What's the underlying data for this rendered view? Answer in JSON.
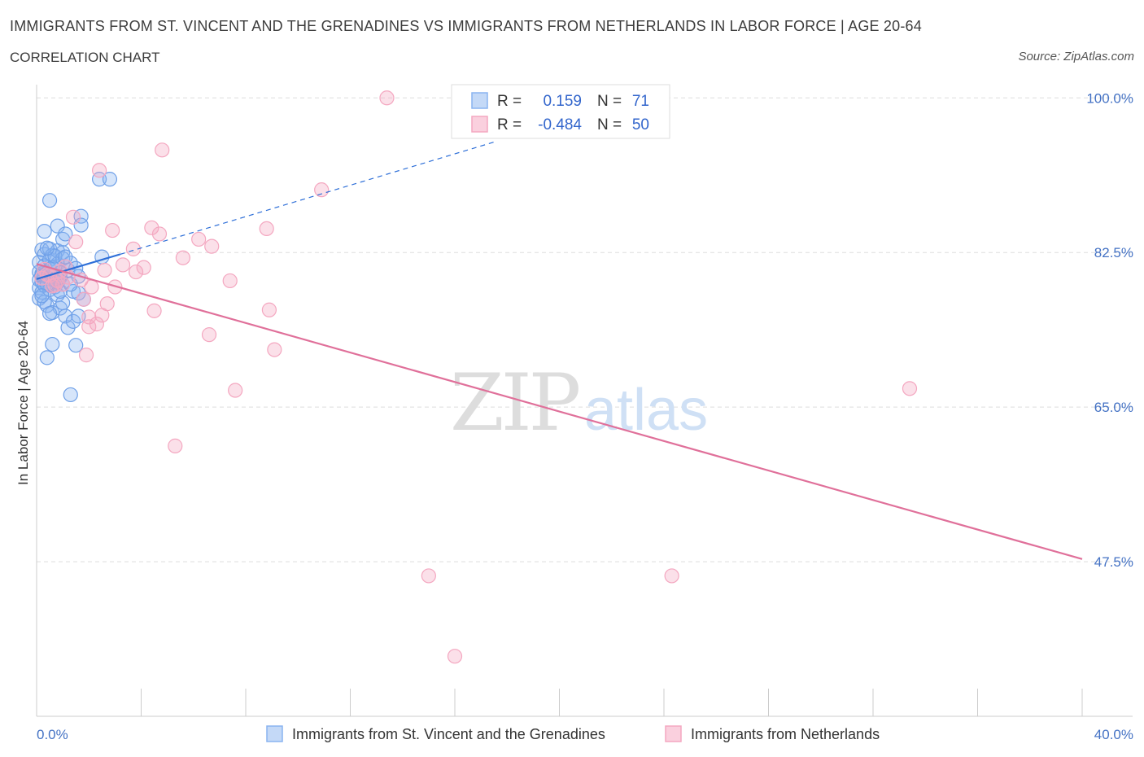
{
  "title": "IMMIGRANTS FROM ST. VINCENT AND THE GRENADINES VS IMMIGRANTS FROM NETHERLANDS IN LABOR FORCE | AGE 20-64",
  "subtitle": "CORRELATION CHART",
  "source": "Source: ZipAtlas.com",
  "watermark": {
    "zip": "ZIP",
    "atlas": "atlas"
  },
  "legend_top": {
    "r_label": "R =",
    "n_label": "N =",
    "rows": [
      {
        "r": "0.159",
        "n": "71",
        "color": "#8ab4f0"
      },
      {
        "r": "-0.484",
        "n": "50",
        "color": "#f4a7c0"
      }
    ]
  },
  "chart_data": {
    "type": "scatter",
    "title": "IMMIGRANTS FROM ST. VINCENT AND THE GRENADINES VS IMMIGRANTS FROM NETHERLANDS IN LABOR FORCE | AGE 20-64",
    "ylabel": "In Labor Force | Age 20-64",
    "xlabel": "",
    "xlim": [
      0,
      40
    ],
    "ylim": [
      30,
      101.5
    ],
    "x_tick_labels": [
      "0.0%",
      "40.0%"
    ],
    "y_tick_labels": [
      "100.0%",
      "82.5%",
      "65.0%",
      "47.5%"
    ],
    "y_ticks": [
      100,
      82.5,
      65,
      47.5
    ],
    "grid": true,
    "legend_position": "bottom",
    "series": [
      {
        "name": "Immigrants from St. Vincent and the Grenadines",
        "color": "#6fa0e8",
        "line_color": "#2e6fd8",
        "trend": {
          "x": [
            0.0,
            3.2
          ],
          "y": [
            79.5,
            82.3
          ],
          "dashed_to": [
            17.5,
            95.0
          ]
        },
        "points": [
          [
            0.1,
            80.3
          ],
          [
            0.1,
            79.4
          ],
          [
            0.1,
            78.5
          ],
          [
            0.1,
            81.4
          ],
          [
            0.1,
            77.3
          ],
          [
            0.2,
            82.8
          ],
          [
            0.2,
            80.1
          ],
          [
            0.2,
            79.2
          ],
          [
            0.2,
            78.0
          ],
          [
            0.3,
            84.9
          ],
          [
            0.3,
            82.3
          ],
          [
            0.3,
            81.0
          ],
          [
            0.3,
            79.9
          ],
          [
            0.3,
            78.8
          ],
          [
            0.4,
            76.5
          ],
          [
            0.4,
            70.6
          ],
          [
            0.5,
            88.4
          ],
          [
            0.5,
            82.9
          ],
          [
            0.5,
            81.7
          ],
          [
            0.5,
            80.6
          ],
          [
            0.5,
            79.5
          ],
          [
            0.5,
            78.3
          ],
          [
            0.6,
            75.7
          ],
          [
            0.6,
            72.1
          ],
          [
            0.6,
            82.2
          ],
          [
            0.7,
            80.9
          ],
          [
            0.7,
            79.3
          ],
          [
            0.7,
            78.6
          ],
          [
            0.8,
            85.5
          ],
          [
            0.8,
            82.7
          ],
          [
            0.8,
            81.2
          ],
          [
            0.8,
            79.1
          ],
          [
            0.8,
            77.7
          ],
          [
            0.9,
            76.2
          ],
          [
            0.9,
            80.2
          ],
          [
            0.9,
            79.7
          ],
          [
            1.0,
            84.0
          ],
          [
            1.0,
            82.5
          ],
          [
            1.0,
            81.8
          ],
          [
            1.0,
            78.9
          ],
          [
            1.0,
            76.8
          ],
          [
            1.1,
            75.3
          ],
          [
            1.1,
            84.6
          ],
          [
            1.2,
            80.5
          ],
          [
            1.2,
            74.0
          ],
          [
            1.3,
            81.3
          ],
          [
            1.3,
            66.4
          ],
          [
            1.4,
            78.1
          ],
          [
            1.4,
            74.7
          ],
          [
            1.5,
            72.0
          ],
          [
            1.5,
            80.7
          ],
          [
            1.6,
            79.8
          ],
          [
            1.6,
            77.9
          ],
          [
            1.6,
            75.3
          ],
          [
            1.7,
            86.6
          ],
          [
            1.7,
            85.6
          ],
          [
            1.8,
            77.2
          ],
          [
            0.2,
            79.9
          ],
          [
            0.4,
            78.9
          ],
          [
            0.6,
            80.8
          ],
          [
            0.3,
            76.9
          ],
          [
            0.7,
            82.1
          ],
          [
            0.9,
            78.1
          ],
          [
            1.1,
            82.0
          ],
          [
            2.4,
            90.8
          ],
          [
            2.8,
            90.8
          ],
          [
            2.5,
            82.0
          ],
          [
            0.2,
            77.6
          ],
          [
            0.5,
            75.6
          ],
          [
            0.4,
            83.0
          ],
          [
            1.3,
            78.9
          ]
        ]
      },
      {
        "name": "Immigrants from Netherlands",
        "color": "#f4a7c0",
        "line_color": "#e0709a",
        "trend": {
          "x": [
            0.0,
            40.0
          ],
          "y": [
            81.2,
            47.8
          ]
        },
        "points": [
          [
            13.4,
            100.0
          ],
          [
            4.8,
            94.1
          ],
          [
            2.4,
            91.8
          ],
          [
            10.9,
            89.6
          ],
          [
            1.4,
            86.5
          ],
          [
            4.4,
            85.3
          ],
          [
            8.8,
            85.2
          ],
          [
            4.7,
            84.6
          ],
          [
            2.9,
            85.0
          ],
          [
            6.2,
            84.0
          ],
          [
            1.5,
            83.7
          ],
          [
            6.7,
            83.2
          ],
          [
            3.7,
            82.9
          ],
          [
            5.6,
            81.9
          ],
          [
            3.3,
            81.1
          ],
          [
            4.1,
            80.8
          ],
          [
            2.6,
            80.5
          ],
          [
            3.8,
            80.3
          ],
          [
            7.4,
            79.3
          ],
          [
            1.1,
            80.9
          ],
          [
            1.7,
            79.4
          ],
          [
            2.1,
            78.6
          ],
          [
            3.0,
            78.6
          ],
          [
            2.0,
            75.2
          ],
          [
            1.8,
            77.2
          ],
          [
            2.7,
            76.7
          ],
          [
            4.5,
            75.9
          ],
          [
            8.9,
            76.0
          ],
          [
            2.5,
            75.4
          ],
          [
            2.3,
            74.4
          ],
          [
            2.0,
            74.1
          ],
          [
            6.6,
            73.2
          ],
          [
            9.1,
            71.5
          ],
          [
            1.9,
            70.9
          ],
          [
            7.6,
            66.9
          ],
          [
            5.3,
            60.6
          ],
          [
            15.0,
            45.9
          ],
          [
            24.3,
            45.9
          ],
          [
            16.0,
            36.8
          ],
          [
            33.4,
            67.1
          ],
          [
            0.3,
            80.6
          ],
          [
            0.5,
            79.9
          ],
          [
            0.8,
            79.3
          ],
          [
            0.6,
            78.7
          ],
          [
            1.2,
            79.7
          ],
          [
            1.0,
            78.9
          ],
          [
            0.4,
            80.0
          ],
          [
            0.2,
            79.6
          ],
          [
            0.9,
            80.4
          ],
          [
            0.7,
            78.8
          ]
        ]
      }
    ]
  }
}
